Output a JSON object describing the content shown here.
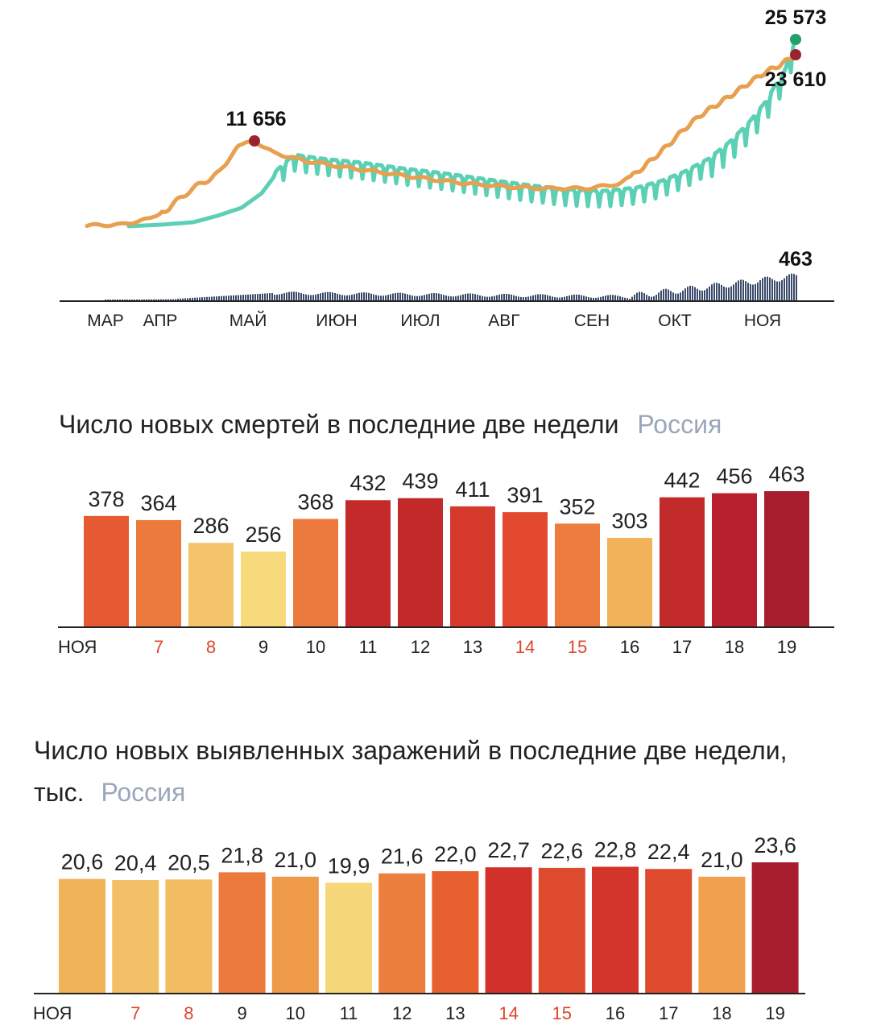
{
  "chart_data": [
    {
      "type": "line",
      "x_ticks": [
        "МАР",
        "АПР",
        "МАЙ",
        "ИЮН",
        "ИЮЛ",
        "АВГ",
        "СЕН",
        "ОКТ",
        "НОЯ"
      ],
      "annotations": [
        {
          "label": "11 656",
          "value": 11656
        },
        {
          "label": "25 573",
          "value": 25573
        },
        {
          "label": "23 610",
          "value": 23610
        }
      ],
      "deaths_annotation": {
        "label": "463",
        "value": 463
      },
      "series_colors": {
        "average": "#e8a050",
        "daily": "#5cd0b4",
        "deaths": "#3a4a6a"
      }
    },
    {
      "type": "bar",
      "title": "Число новых смертей в последние две недели",
      "region": "Россия",
      "categories": [
        "НОЯ",
        "7",
        "8",
        "9",
        "10",
        "11",
        "12",
        "13",
        "14",
        "15",
        "16",
        "17",
        "18",
        "19"
      ],
      "labels": [
        "378",
        "364",
        "286",
        "256",
        "368",
        "432",
        "439",
        "411",
        "391",
        "352",
        "303",
        "442",
        "456",
        "463"
      ],
      "values": [
        378,
        364,
        286,
        256,
        368,
        432,
        439,
        411,
        391,
        352,
        303,
        442,
        456,
        463
      ],
      "weekend": [
        false,
        true,
        true,
        false,
        false,
        false,
        false,
        false,
        true,
        true,
        false,
        false,
        false,
        false
      ],
      "colors": [
        "#e65a32",
        "#ec7a3c",
        "#f3c46a",
        "#f6da7c",
        "#ec7a3c",
        "#c52a2a",
        "#c22a2a",
        "#d63a2c",
        "#e2492e",
        "#ec7d3e",
        "#f1b259",
        "#c32a2a",
        "#b82030",
        "#a91e2e"
      ]
    },
    {
      "type": "bar",
      "title": "Число новых выявленных заражений в последние две недели, тыс.",
      "region": "Россия",
      "categories": [
        "НОЯ",
        "7",
        "8",
        "9",
        "10",
        "11",
        "12",
        "13",
        "14",
        "15",
        "16",
        "17",
        "18",
        "19"
      ],
      "labels": [
        "20,6",
        "20,4",
        "20,5",
        "21,8",
        "21,0",
        "19,9",
        "21,6",
        "22,0",
        "22,7",
        "22,6",
        "22,8",
        "22,4",
        "21,0",
        "23,6"
      ],
      "values": [
        20.6,
        20.4,
        20.5,
        21.8,
        21.0,
        19.9,
        21.6,
        22.0,
        22.7,
        22.6,
        22.8,
        22.4,
        21.0,
        23.6
      ],
      "weekend": [
        false,
        true,
        true,
        false,
        false,
        false,
        false,
        false,
        true,
        true,
        false,
        false,
        false,
        false
      ],
      "colors": [
        "#f0b458",
        "#f3c068",
        "#f2bc62",
        "#ec7a3c",
        "#ef9a48",
        "#f6d77a",
        "#ec7f3e",
        "#e8602f",
        "#d2302a",
        "#de4a2e",
        "#d4352a",
        "#de4a2e",
        "#f0a04e",
        "#a81e2e"
      ]
    }
  ]
}
